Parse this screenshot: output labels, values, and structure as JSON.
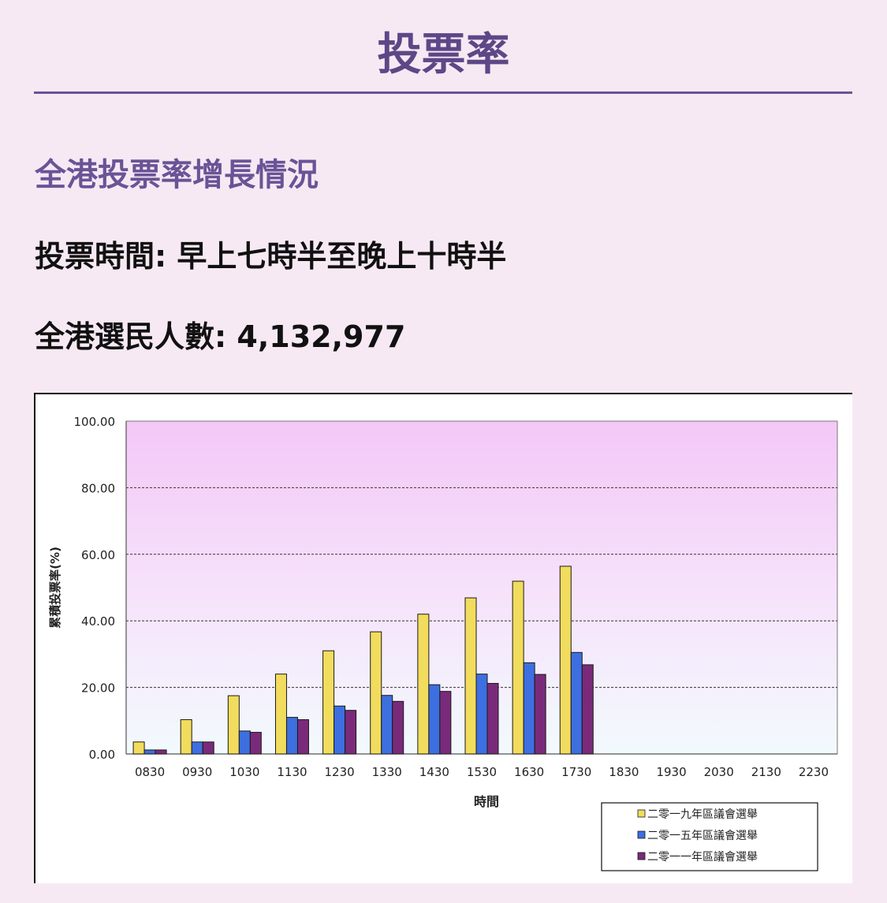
{
  "page": {
    "title": "投票率",
    "section_heading": "全港投票率增長情況",
    "voting_hours": "投票時間: 早上七時半至晚上十時半",
    "registered_voters": "全港選民人數: 4,132,977"
  },
  "colors": {
    "accent": "#6a5396",
    "page_background": "#f7e9f3",
    "series_2019": "#f2dc5d",
    "series_2015": "#3d6fe0",
    "series_2011": "#7a2a7a"
  },
  "chart_data": {
    "type": "bar",
    "title": "",
    "xlabel": "時間",
    "ylabel": "累積投票率(%)",
    "ylim": [
      0,
      100
    ],
    "yticks": [
      "0.00",
      "20.00",
      "40.00",
      "60.00",
      "80.00",
      "100.00"
    ],
    "grid": "horizontal dashed",
    "legend_placement": "bottom-right",
    "categories": [
      "0830",
      "0930",
      "1030",
      "1130",
      "1230",
      "1330",
      "1430",
      "1530",
      "1630",
      "1730",
      "1830",
      "1930",
      "2030",
      "2130",
      "2230"
    ],
    "series": [
      {
        "name": "二零一九年區議會選舉",
        "color": "#f2dc5d",
        "values": [
          3.6,
          10.3,
          17.5,
          24.0,
          31.0,
          36.7,
          42.0,
          46.9,
          51.9,
          56.4,
          null,
          null,
          null,
          null,
          null
        ]
      },
      {
        "name": "二零一五年區議會選舉",
        "color": "#3d6fe0",
        "values": [
          1.2,
          3.6,
          6.9,
          11.0,
          14.4,
          17.6,
          20.8,
          24.0,
          27.4,
          30.5,
          null,
          null,
          null,
          null,
          null
        ]
      },
      {
        "name": "二零一一年區議會選舉",
        "color": "#7a2a7a",
        "values": [
          1.2,
          3.6,
          6.5,
          10.3,
          13.1,
          15.8,
          18.8,
          21.2,
          23.9,
          26.8,
          null,
          null,
          null,
          null,
          null
        ]
      }
    ]
  }
}
